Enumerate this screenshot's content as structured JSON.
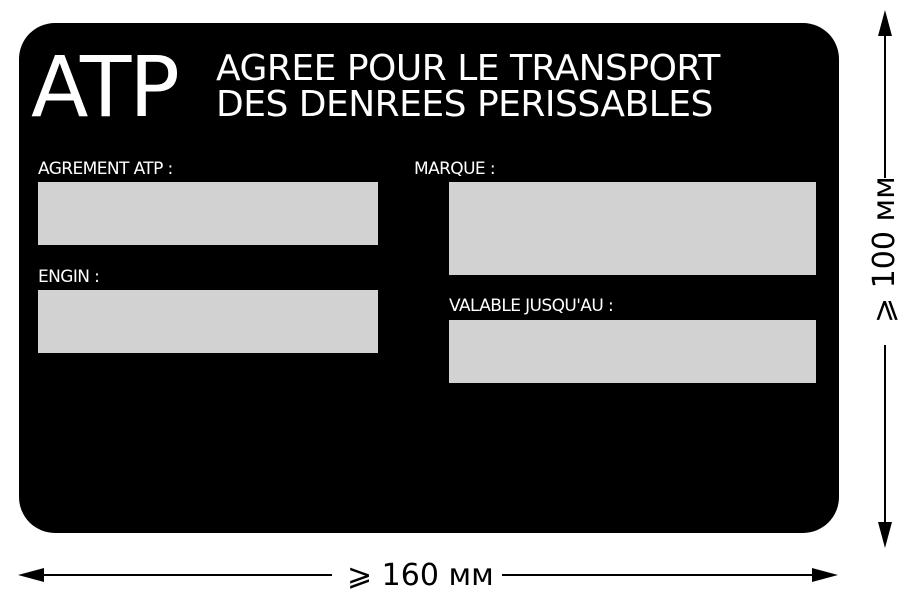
{
  "plate": {
    "logo": "ATP",
    "title_line1": "AGREE POUR LE TRANSPORT",
    "title_line2": "DES DENREES PERISSABLES",
    "fields": {
      "agrement_label": "AGREMENT ATP :",
      "engin_label": "ENGIN :",
      "marque_label": "MARQUE :",
      "valable_label": "VALABLE JUSQU'AU :"
    },
    "colors": {
      "plate": "#000000",
      "text": "#ffffff",
      "field": "#d2d2d2"
    }
  },
  "dimensions": {
    "width_label": "⩾ 160 мм",
    "height_label": "⩾ 100 мм"
  }
}
